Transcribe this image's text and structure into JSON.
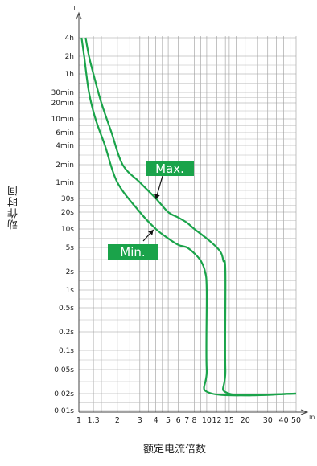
{
  "chart_data": {
    "type": "line",
    "xlabel": "额定电流倍数",
    "ylabel": "动作时间",
    "x_axis_symbol": "In",
    "y_axis_symbol": "T",
    "x_scale": "log",
    "y_scale": "log",
    "xlim": [
      1,
      50
    ],
    "x_ticks": [
      {
        "value": 1,
        "label": "1"
      },
      {
        "value": 1.3,
        "label": "1.3"
      },
      {
        "value": 2,
        "label": "2"
      },
      {
        "value": 3,
        "label": "3"
      },
      {
        "value": 4,
        "label": "4"
      },
      {
        "value": 5,
        "label": "5"
      },
      {
        "value": 6,
        "label": "6"
      },
      {
        "value": 7,
        "label": "7"
      },
      {
        "value": 8,
        "label": "8"
      },
      {
        "value": 10,
        "label": "10"
      },
      {
        "value": 12,
        "label": "12"
      },
      {
        "value": 15,
        "label": "15"
      },
      {
        "value": 20,
        "label": "20"
      },
      {
        "value": 30,
        "label": "30"
      },
      {
        "value": 40,
        "label": "40"
      },
      {
        "value": 50,
        "label": "50"
      }
    ],
    "y_ticks": [
      {
        "label": "4h"
      },
      {
        "label": "2h"
      },
      {
        "label": "1h"
      },
      {
        "label": "30min"
      },
      {
        "label": "20min"
      },
      {
        "label": "10min"
      },
      {
        "label": "6min"
      },
      {
        "label": "4min"
      },
      {
        "label": "2min"
      },
      {
        "label": "1min"
      },
      {
        "label": "30s"
      },
      {
        "label": "20s"
      },
      {
        "label": "10s"
      },
      {
        "label": "5s"
      },
      {
        "label": "2s"
      },
      {
        "label": "1s"
      },
      {
        "label": "0.5s"
      },
      {
        "label": "0.2s"
      },
      {
        "label": "0.1s"
      },
      {
        "label": "0.05s"
      },
      {
        "label": "0.02s"
      },
      {
        "label": "0.01s"
      }
    ],
    "grid": true,
    "series": [
      {
        "name": "Max.",
        "color": "#1aa34a",
        "points": [
          [
            1.13,
            "4h"
          ],
          [
            1.2,
            "2h"
          ],
          [
            1.3,
            "1h"
          ],
          [
            1.5,
            "20min"
          ],
          [
            1.8,
            "6min"
          ],
          [
            2.2,
            "2min"
          ],
          [
            3,
            "1min"
          ],
          [
            4,
            "30s"
          ],
          [
            5,
            "20s"
          ],
          [
            6,
            "16s"
          ],
          [
            7,
            "13s"
          ],
          [
            8,
            "10s"
          ],
          [
            10,
            "7s"
          ],
          [
            12,
            "5s"
          ],
          [
            13,
            "4s"
          ],
          [
            13.5,
            "3s"
          ],
          [
            14,
            "2s"
          ],
          [
            14,
            "0.05s"
          ],
          [
            15,
            "0.02s"
          ],
          [
            50,
            "0.02s"
          ]
        ]
      },
      {
        "name": "Min.",
        "color": "#1aa34a",
        "points": [
          [
            1.05,
            "4h"
          ],
          [
            1.1,
            "2h"
          ],
          [
            1.2,
            "30min"
          ],
          [
            1.35,
            "10min"
          ],
          [
            1.6,
            "4min"
          ],
          [
            2,
            "1min"
          ],
          [
            3,
            "20s"
          ],
          [
            4,
            "10s"
          ],
          [
            5,
            "7s"
          ],
          [
            6,
            "5.5s"
          ],
          [
            7,
            "5s"
          ],
          [
            8,
            "4s"
          ],
          [
            9,
            "3s"
          ],
          [
            9.7,
            "2s"
          ],
          [
            10,
            "1s"
          ],
          [
            10,
            "0.05s"
          ],
          [
            11,
            "0.02s"
          ],
          [
            50,
            "0.02s"
          ]
        ]
      }
    ],
    "annotations": [
      {
        "text": "Max.",
        "series": "Max."
      },
      {
        "text": "Min.",
        "series": "Min."
      }
    ]
  }
}
